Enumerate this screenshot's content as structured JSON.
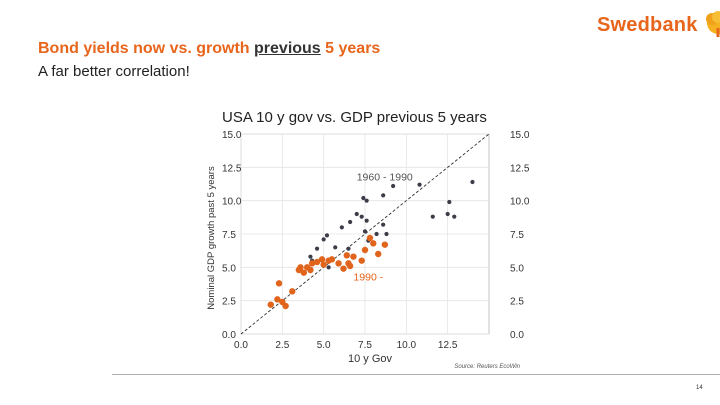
{
  "brand": {
    "name": "Swedbank",
    "color": "#e8651c"
  },
  "slide": {
    "title_before": "Bond yields now vs. growth ",
    "title_underlined": "previous",
    "title_after": " 5 years",
    "subtitle": "A far better correlation!",
    "page_number": "14"
  },
  "chart_data": {
    "type": "scatter",
    "title": "USA 10 y gov vs. GDP previous 5 years",
    "xlabel": "10 y Gov",
    "ylabel": "Nominal GDP growth past 5 years",
    "source": "Source: Reuters EcoWin",
    "xlim": [
      0,
      15
    ],
    "ylim": [
      0,
      15
    ],
    "x_ticks": [
      "0.0",
      "2.5",
      "5.0",
      "7.5",
      "10.0",
      "12.5"
    ],
    "y_ticks": [
      "0.0",
      "2.5",
      "5.0",
      "7.5",
      "10.0",
      "12.5",
      "15.0"
    ],
    "grid": true,
    "reference_line": {
      "from": [
        0,
        0
      ],
      "to": [
        15,
        15
      ],
      "style": "dashed"
    },
    "annotations": [
      {
        "text": "1960 - 1990",
        "x": 7.0,
        "y": 11.5,
        "color": "#555555"
      },
      {
        "text": "1990 -",
        "x": 6.8,
        "y": 4.0,
        "color": "#e8651c"
      }
    ],
    "series": [
      {
        "name": "1960 - 1990",
        "color": "#3d3d4a",
        "points": [
          [
            4.2,
            5.8
          ],
          [
            4.3,
            5.5
          ],
          [
            4.6,
            6.4
          ],
          [
            5.0,
            7.1
          ],
          [
            5.2,
            7.4
          ],
          [
            5.7,
            6.5
          ],
          [
            6.1,
            8.0
          ],
          [
            6.6,
            8.4
          ],
          [
            7.0,
            9.0
          ],
          [
            7.3,
            8.8
          ],
          [
            7.4,
            10.2
          ],
          [
            7.6,
            10.0
          ],
          [
            7.6,
            8.5
          ],
          [
            7.7,
            7.0
          ],
          [
            8.2,
            7.5
          ],
          [
            8.6,
            10.4
          ],
          [
            8.8,
            7.5
          ],
          [
            9.2,
            11.1
          ],
          [
            10.8,
            11.2
          ],
          [
            11.6,
            8.8
          ],
          [
            12.5,
            9.0
          ],
          [
            12.6,
            9.9
          ],
          [
            12.9,
            8.8
          ],
          [
            14.0,
            11.4
          ],
          [
            7.5,
            7.7
          ],
          [
            5.3,
            5.0
          ],
          [
            6.5,
            6.4
          ],
          [
            8.6,
            8.2
          ]
        ]
      },
      {
        "name": "1990 -",
        "color": "#e0641c",
        "points": [
          [
            1.8,
            2.2
          ],
          [
            2.2,
            2.6
          ],
          [
            2.3,
            3.8
          ],
          [
            2.5,
            2.4
          ],
          [
            2.7,
            2.1
          ],
          [
            3.1,
            3.2
          ],
          [
            3.5,
            4.8
          ],
          [
            3.6,
            5.0
          ],
          [
            3.8,
            4.6
          ],
          [
            4.0,
            5.0
          ],
          [
            4.2,
            4.8
          ],
          [
            4.3,
            5.3
          ],
          [
            4.6,
            5.4
          ],
          [
            4.9,
            5.6
          ],
          [
            5.0,
            5.2
          ],
          [
            5.3,
            5.5
          ],
          [
            5.5,
            5.6
          ],
          [
            5.9,
            5.3
          ],
          [
            6.2,
            4.9
          ],
          [
            6.4,
            5.9
          ],
          [
            6.5,
            5.3
          ],
          [
            6.8,
            5.8
          ],
          [
            7.3,
            5.5
          ],
          [
            7.5,
            6.3
          ],
          [
            8.0,
            6.8
          ],
          [
            8.3,
            6.0
          ],
          [
            8.7,
            6.7
          ],
          [
            7.8,
            7.2
          ],
          [
            6.6,
            5.1
          ]
        ]
      }
    ]
  }
}
